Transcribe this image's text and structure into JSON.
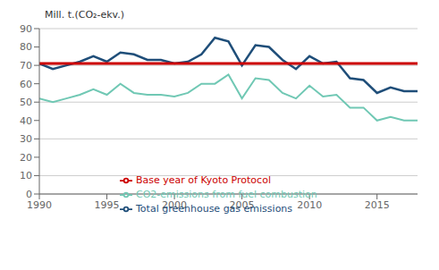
{
  "chart_data": {
    "type": "line",
    "y_label": "Mill. t.(CO₂-ekv.)",
    "x": [
      1990,
      1991,
      1992,
      1993,
      1994,
      1995,
      1996,
      1997,
      1998,
      1999,
      2000,
      2001,
      2002,
      2003,
      2004,
      2005,
      2006,
      2007,
      2008,
      2009,
      2010,
      2011,
      2012,
      2013,
      2014,
      2015,
      2016,
      2017,
      2018
    ],
    "series": [
      {
        "name": "Total greenhouse gas emissions",
        "color": "#1f4e79",
        "values": [
          71,
          68,
          70,
          72,
          75,
          72,
          77,
          76,
          73,
          73,
          71,
          72,
          76,
          85,
          83,
          70,
          81,
          80,
          73,
          68,
          75,
          71,
          72,
          63,
          62,
          55,
          58,
          56,
          56
        ]
      },
      {
        "name": "Base year of Kyoto Protocol",
        "color": "#cc0000",
        "values": [
          71,
          71,
          71,
          71,
          71,
          71,
          71,
          71,
          71,
          71,
          71,
          71,
          71,
          71,
          71,
          71,
          71,
          71,
          71,
          71,
          71,
          71,
          71,
          71,
          71,
          71,
          71,
          71,
          71
        ]
      },
      {
        "name": "CO2-emissions from fuel combustion",
        "color": "#70c8b4",
        "values": [
          52,
          50,
          52,
          54,
          57,
          54,
          60,
          55,
          54,
          54,
          53,
          55,
          60,
          60,
          65,
          52,
          63,
          62,
          55,
          52,
          59,
          53,
          54,
          47,
          47,
          40,
          42,
          40,
          40
        ]
      }
    ],
    "xlim": [
      1990,
      2018
    ],
    "xticks": [
      1990,
      1995,
      2000,
      2005,
      2010,
      2015
    ],
    "ylim": [
      0,
      90
    ],
    "yticks": [
      0,
      10,
      20,
      30,
      40,
      50,
      60,
      70,
      80,
      90
    ],
    "grid": true,
    "legend": "bottom"
  }
}
